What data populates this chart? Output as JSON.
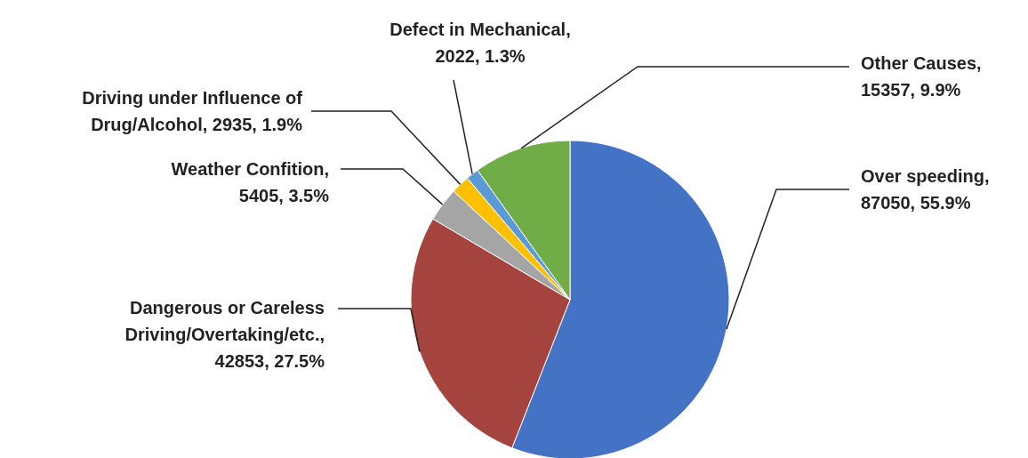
{
  "chart_data": {
    "type": "pie",
    "categories": [
      "Over speeding",
      "Dangerous or Careless Driving/Overtaking/etc.",
      "Weather Confition",
      "Driving under Influence of Drug/Alcohol",
      "Defect in Mechanical",
      "Other Causes"
    ],
    "values": [
      87050,
      42853,
      5405,
      2935,
      2022,
      15357
    ],
    "value_labels": [
      ", 87050, 55.9%",
      ", 42853, 27.5%",
      ", 5405, 3.5%",
      ", 2935, 1.9%",
      ", 2022, 1.3%",
      ", 15357, 9.9%"
    ],
    "colors": [
      "#4472c4",
      "#a5443f",
      "#a5a5a5",
      "#ffc000",
      "#5b9bd5",
      "#70ad47"
    ]
  }
}
